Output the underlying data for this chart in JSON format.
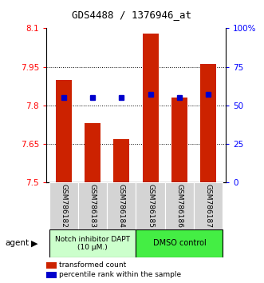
{
  "title": "GDS4488 / 1376946_at",
  "samples": [
    "GSM786182",
    "GSM786183",
    "GSM786184",
    "GSM786185",
    "GSM786186",
    "GSM786187"
  ],
  "bar_values": [
    7.9,
    7.73,
    7.67,
    8.08,
    7.83,
    7.96
  ],
  "pct_raw": [
    55,
    55,
    55,
    57,
    55,
    57
  ],
  "bar_bottom": 7.5,
  "ylim": [
    7.5,
    8.1
  ],
  "y_ticks": [
    7.5,
    7.65,
    7.8,
    7.95,
    8.1
  ],
  "y_tick_labels": [
    "7.5",
    "7.65",
    "7.8",
    "7.95",
    "8.1"
  ],
  "y2_ticks": [
    0,
    25,
    50,
    75,
    100
  ],
  "y2_tick_labels": [
    "0",
    "25",
    "50",
    "75",
    "100%"
  ],
  "bar_color": "#cc2200",
  "percentile_color": "#0000cc",
  "group1_color": "#ccffcc",
  "group2_color": "#44ee44",
  "group1_label": "Notch inhibitor DAPT\n(10 μM.)",
  "group2_label": "DMSO control",
  "agent_label": "agent",
  "legend_bar_label": "transformed count",
  "legend_pct_label": "percentile rank within the sample",
  "bar_width": 0.55,
  "background_color": "#ffffff",
  "gridline_color": "#000000",
  "gridline_y": [
    7.65,
    7.8,
    7.95
  ]
}
